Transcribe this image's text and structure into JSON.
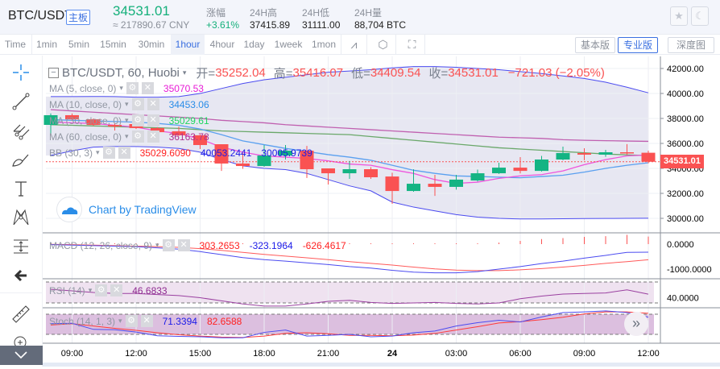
{
  "header": {
    "symbol": "BTC/USDT",
    "badge": "主板",
    "price": "34531.01",
    "cny": "≈ 217890.67 CNY",
    "stats": [
      {
        "label": "涨幅",
        "value": "+3.61%",
        "color": "#15b07b"
      },
      {
        "label": "24H高",
        "value": "37415.89"
      },
      {
        "label": "24H低",
        "value": "31111.00"
      },
      {
        "label": "24H量",
        "value": "88,704 BTC"
      }
    ],
    "icons": [
      "star-icon",
      "moon-icon"
    ]
  },
  "toolbar": {
    "intervals": [
      "Time",
      "1min",
      "5min",
      "15min",
      "30min",
      "1hour",
      "4hour",
      "1day",
      "1week",
      "1mon"
    ],
    "active": "1hour",
    "tools": [
      "indicator-icon",
      "settings-icon",
      "fullscreen-icon"
    ],
    "views": [
      "基本版",
      "专业版",
      "深度图"
    ],
    "active_view": "专业版"
  },
  "legend": {
    "title": "BTC/USDT, 60, Huobi",
    "open_label": "开=",
    "open": "35252.04",
    "high_label": "高=",
    "high": "35416.07",
    "low_label": "低=",
    "low": "34409.54",
    "close_label": "收=",
    "close": "34531.01",
    "change": "−721.03 (−2.05%)",
    "studies": [
      {
        "name": "MA (5, close, 0)",
        "value": "35070.53",
        "color": "#e81ad6"
      },
      {
        "name": "MA (10, close, 0)",
        "value": "34453.06",
        "color": "#2a8de8"
      },
      {
        "name": "MA (30, close, 0)",
        "value": "35029.61",
        "color": "#1ed760"
      },
      {
        "name": "MA (60, close, 0)",
        "value": "36163.78",
        "color": "#b0308f"
      }
    ],
    "bb": {
      "name": "BB (30, 3)",
      "values": [
        "35029.6090",
        "40053.2441",
        "30005.9739"
      ],
      "colors": [
        "#ff2222",
        "#1a1ae8",
        "#1a1ae8"
      ]
    },
    "macd": {
      "name": "MACD (12, 26, close, 9)",
      "values": [
        "303.2653",
        "-323.1964",
        "-626.4617"
      ],
      "colors": [
        "#ff2222",
        "#1a1ae8",
        "#ff2222"
      ]
    },
    "rsi": {
      "name": "RSI (14)",
      "value": "46.6833",
      "color": "#8e2a90"
    },
    "stoch": {
      "name": "Stoch (14, 1, 3)",
      "values": [
        "71.3394",
        "82.6588"
      ],
      "colors": [
        "#1a1ae8",
        "#ff2222"
      ]
    }
  },
  "watermark": "Chart by TradingView",
  "last_price_label": "34531.01",
  "chart_data": {
    "type": "candlestick",
    "x": [
      "08:00",
      "09:00",
      "10:00",
      "11:00",
      "12:00",
      "13:00",
      "14:00",
      "15:00",
      "16:00",
      "17:00",
      "18:00",
      "19:00",
      "20:00",
      "21:00",
      "22:00",
      "23:00",
      "24 00:00",
      "01:00",
      "02:00",
      "03:00",
      "04:00",
      "05:00",
      "06:00",
      "07:00",
      "08:00",
      "09:00",
      "10:00",
      "11:00",
      "12:00"
    ],
    "open": [
      37484,
      38260,
      37930,
      37480,
      37550,
      37230,
      36970,
      36650,
      35935,
      34390,
      34190,
      35030,
      35420,
      34000,
      33610,
      33935,
      33350,
      32190,
      32770,
      32520,
      33030,
      33610,
      34060,
      33800,
      34710,
      35230,
      35100,
      35290,
      35252.04
    ],
    "high": [
      38400,
      38400,
      38000,
      37600,
      37600,
      37300,
      37350,
      36700,
      35935,
      35220,
      35870,
      35870,
      35800,
      34000,
      34600,
      34100,
      33650,
      33930,
      33480,
      33480,
      33900,
      34450,
      34900,
      35000,
      35740,
      35610,
      35480,
      35940,
      35416.07
    ],
    "low": [
      36800,
      37900,
      37400,
      37030,
      37150,
      36900,
      36600,
      35550,
      33800,
      33970,
      34130,
      34720,
      33230,
      32710,
      33160,
      33160,
      31160,
      32130,
      31800,
      32300,
      32950,
      33560,
      33600,
      33750,
      34650,
      34650,
      34930,
      35100,
      34409.54
    ],
    "close": [
      38258,
      37930,
      37480,
      37350,
      37230,
      36900,
      36650,
      35870,
      34390,
      34190,
      35030,
      35420,
      33935,
      33610,
      33935,
      33290,
      32190,
      32770,
      32520,
      33100,
      33610,
      34060,
      33800,
      34710,
      35230,
      35100,
      35290,
      35250,
      34531.01
    ],
    "ma5": [
      37700,
      37650,
      37600,
      37450,
      37300,
      37000,
      36800,
      36350,
      35700,
      35300,
      35000,
      34900,
      34800,
      34600,
      34350,
      34250,
      33900,
      33600,
      33100,
      32800,
      32900,
      33200,
      33400,
      33500,
      33800,
      34300,
      34700,
      35000,
      35070.53
    ],
    "ma10": [
      37900,
      37850,
      37800,
      37750,
      37700,
      37600,
      37450,
      37150,
      36700,
      36200,
      35900,
      35600,
      35350,
      35100,
      34900,
      34650,
      34250,
      33850,
      33600,
      33400,
      33350,
      33300,
      33250,
      33350,
      33450,
      33700,
      34000,
      34250,
      34453.06
    ],
    "ma30": [
      37500,
      37450,
      37400,
      37350,
      37300,
      37250,
      37200,
      37100,
      37000,
      36950,
      36900,
      36850,
      36800,
      36750,
      36700,
      36550,
      36400,
      36250,
      36100,
      35950,
      35800,
      35650,
      35550,
      35450,
      35350,
      35250,
      35150,
      35080,
      35029.61
    ],
    "ma60": [
      38700,
      38600,
      38500,
      38400,
      38300,
      38200,
      38100,
      38000,
      37850,
      37750,
      37650,
      37500,
      37400,
      37300,
      37200,
      37100,
      37000,
      36900,
      36800,
      36700,
      36600,
      36500,
      36450,
      36400,
      36300,
      36250,
      36220,
      36190,
      36163.78
    ],
    "bb_upper": [
      39750,
      39750,
      39760,
      39750,
      39700,
      39700,
      39750,
      40000,
      40400,
      40800,
      41100,
      41300,
      41500,
      41700,
      41800,
      41900,
      42050,
      42150,
      42150,
      42100,
      42000,
      41900,
      41750,
      41600,
      41400,
      41200,
      40900,
      40500,
      40053.24
    ],
    "bb_lower": [
      35030,
      35400,
      35700,
      35750,
      35750,
      35700,
      35600,
      35300,
      34700,
      34200,
      34000,
      33900,
      33600,
      33100,
      32600,
      32200,
      31300,
      30900,
      30600,
      30300,
      30100,
      30000,
      29950,
      29950,
      29970,
      29980,
      29990,
      30000,
      30005.97
    ],
    "macd": [
      -20,
      -40,
      -60,
      -80,
      -100,
      -150,
      -200,
      -300,
      -420,
      -540,
      -620,
      -680,
      -750,
      -820,
      -900,
      -960,
      -1050,
      -1120,
      -1150,
      -1150,
      -1100,
      -1000,
      -900,
      -780,
      -680,
      -560,
      -450,
      -330,
      -323.1964
    ],
    "signal": [
      -10,
      -20,
      -40,
      -60,
      -80,
      -100,
      -130,
      -180,
      -250,
      -330,
      -410,
      -480,
      -550,
      -620,
      -700,
      -770,
      -840,
      -920,
      -990,
      -1040,
      -1060,
      -1060,
      -1030,
      -980,
      -920,
      -850,
      -770,
      -700,
      -626.4617
    ],
    "rsi": [
      56,
      53,
      50,
      48,
      48,
      46,
      44,
      40,
      34,
      28,
      24,
      24,
      28,
      33,
      35,
      31,
      29,
      30,
      31,
      29,
      28,
      30,
      38,
      43,
      47,
      48,
      49,
      55,
      46.68
    ],
    "stoch_k": [
      52,
      53,
      35,
      34,
      27,
      16,
      14,
      13,
      10,
      10,
      26,
      33,
      15,
      17,
      20,
      13,
      15,
      25,
      30,
      45,
      55,
      62,
      57,
      72,
      85,
      87,
      90,
      85,
      71.34
    ],
    "stoch_d": [
      48,
      52,
      45,
      38,
      32,
      25,
      19,
      15,
      12,
      11,
      15,
      23,
      25,
      22,
      17,
      17,
      16,
      18,
      23,
      33,
      43,
      54,
      58,
      64,
      71,
      81,
      87,
      87,
      82.66
    ],
    "price_ticks": [
      "42000.00",
      "40000.00",
      "38000.00",
      "36000.00",
      "34000.00",
      "32000.00",
      "30000.00"
    ],
    "macd_ticks": [
      "0.0000",
      "-1000.0000"
    ],
    "rsi_ticks": [
      "40.0000"
    ],
    "time_ticks": [
      "09:00",
      "12:00",
      "15:00",
      "18:00",
      "21:00",
      "24",
      "03:00",
      "06:00",
      "09:00",
      "12:00"
    ],
    "colors": {
      "up": "#14b483",
      "down": "#fa5252",
      "bb_fill": "#e3e3f0",
      "rsi_fill": "#efe2f0",
      "stoch_fill": "#dcbfdf"
    }
  }
}
